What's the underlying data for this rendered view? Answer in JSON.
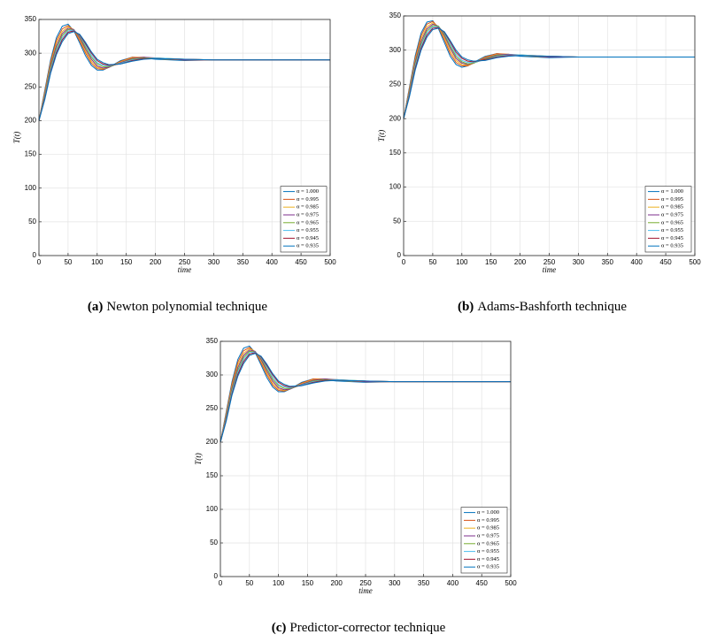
{
  "chart_data": [
    {
      "type": "line",
      "xlabel": "time",
      "ylabel": "T(t)",
      "caption_label": "(a)",
      "caption": "Newton polynomial technique",
      "x": [
        0,
        10,
        20,
        30,
        40,
        50,
        60,
        70,
        80,
        90,
        100,
        110,
        120,
        140,
        160,
        180,
        200,
        250,
        300,
        400,
        500
      ],
      "xlim": [
        0,
        500
      ],
      "ylim": [
        0,
        350
      ],
      "xticks": [
        0,
        50,
        100,
        150,
        200,
        250,
        300,
        350,
        400,
        450,
        500
      ],
      "yticks": [
        0,
        50,
        100,
        150,
        200,
        250,
        300,
        350
      ],
      "grid": true,
      "legend": "lower right",
      "series": [
        {
          "name": "α = 1.000",
          "color": "#0072bd",
          "values": [
            200,
            245,
            290,
            323,
            340,
            343,
            333,
            315,
            296,
            282,
            275,
            275,
            279,
            289,
            294,
            293,
            291,
            289,
            290,
            290,
            290
          ]
        },
        {
          "name": "α = 0.995",
          "color": "#d95319",
          "values": [
            200,
            243,
            287,
            319,
            336,
            341,
            334,
            318,
            300,
            285,
            277,
            276,
            279,
            288,
            294,
            294,
            292,
            290,
            290,
            290,
            290
          ]
        },
        {
          "name": "α = 0.985",
          "color": "#edb120",
          "values": [
            200,
            241,
            284,
            315,
            332,
            339,
            335,
            321,
            303,
            288,
            279,
            277,
            279,
            287,
            293,
            294,
            292,
            290,
            290,
            290,
            290
          ]
        },
        {
          "name": "α = 0.975",
          "color": "#7e2f8e",
          "values": [
            200,
            239,
            281,
            311,
            329,
            337,
            335,
            323,
            306,
            291,
            281,
            278,
            279,
            286,
            292,
            294,
            293,
            290,
            290,
            290,
            290
          ]
        },
        {
          "name": "α = 0.965",
          "color": "#77ac30",
          "values": [
            200,
            237,
            278,
            307,
            326,
            335,
            334,
            325,
            309,
            294,
            284,
            280,
            280,
            285,
            291,
            293,
            293,
            291,
            290,
            290,
            290
          ]
        },
        {
          "name": "α = 0.955",
          "color": "#4dbeee",
          "values": [
            200,
            235,
            275,
            304,
            323,
            333,
            334,
            326,
            312,
            297,
            286,
            282,
            281,
            285,
            290,
            292,
            293,
            291,
            290,
            290,
            290
          ]
        },
        {
          "name": "α = 0.945",
          "color": "#a2142f",
          "values": [
            200,
            233,
            272,
            301,
            320,
            331,
            333,
            327,
            314,
            300,
            289,
            284,
            282,
            284,
            289,
            292,
            292,
            291,
            290,
            290,
            290
          ]
        },
        {
          "name": "α = 0.935",
          "color": "#0072bd",
          "values": [
            200,
            231,
            270,
            298,
            317,
            329,
            332,
            328,
            316,
            302,
            291,
            286,
            283,
            284,
            288,
            291,
            292,
            291,
            290,
            290,
            290
          ]
        }
      ]
    },
    {
      "type": "line",
      "xlabel": "time",
      "ylabel": "T(t)",
      "caption_label": "(b)",
      "caption": "Adams-Bashforth technique",
      "x": [
        0,
        10,
        20,
        30,
        40,
        50,
        60,
        70,
        80,
        90,
        100,
        110,
        120,
        140,
        160,
        180,
        200,
        250,
        300,
        400,
        500
      ],
      "xlim": [
        0,
        500
      ],
      "ylim": [
        0,
        350
      ],
      "xticks": [
        0,
        50,
        100,
        150,
        200,
        250,
        300,
        350,
        400,
        450,
        500
      ],
      "yticks": [
        0,
        50,
        100,
        150,
        200,
        250,
        300,
        350
      ],
      "grid": true,
      "legend": "lower right",
      "series": [
        {
          "name": "α = 1.000",
          "color": "#0072bd",
          "values": [
            200,
            246,
            292,
            325,
            341,
            343,
            331,
            311,
            291,
            279,
            275,
            277,
            282,
            291,
            295,
            293,
            291,
            289,
            290,
            290,
            290
          ]
        },
        {
          "name": "α = 0.995",
          "color": "#d95319",
          "values": [
            200,
            244,
            289,
            321,
            338,
            342,
            333,
            315,
            295,
            282,
            277,
            277,
            281,
            290,
            295,
            294,
            292,
            290,
            290,
            290,
            290
          ]
        },
        {
          "name": "α = 0.985",
          "color": "#edb120",
          "values": [
            200,
            242,
            286,
            317,
            334,
            340,
            334,
            318,
            299,
            285,
            279,
            278,
            281,
            289,
            294,
            294,
            292,
            290,
            290,
            290,
            290
          ]
        },
        {
          "name": "α = 0.975",
          "color": "#7e2f8e",
          "values": [
            200,
            240,
            283,
            313,
            331,
            338,
            335,
            321,
            303,
            288,
            281,
            279,
            281,
            288,
            293,
            294,
            293,
            290,
            290,
            290,
            290
          ]
        },
        {
          "name": "α = 0.965",
          "color": "#77ac30",
          "values": [
            200,
            238,
            280,
            309,
            328,
            336,
            335,
            323,
            306,
            291,
            283,
            280,
            281,
            287,
            292,
            293,
            293,
            291,
            290,
            290,
            290
          ]
        },
        {
          "name": "α = 0.955",
          "color": "#4dbeee",
          "values": [
            200,
            236,
            277,
            306,
            325,
            334,
            334,
            325,
            309,
            294,
            285,
            282,
            282,
            286,
            291,
            293,
            293,
            291,
            290,
            290,
            290
          ]
        },
        {
          "name": "α = 0.945",
          "color": "#a2142f",
          "values": [
            200,
            234,
            274,
            303,
            322,
            332,
            333,
            326,
            312,
            297,
            288,
            284,
            283,
            286,
            290,
            292,
            292,
            291,
            290,
            290,
            290
          ]
        },
        {
          "name": "α = 0.935",
          "color": "#0072bd",
          "values": [
            200,
            232,
            271,
            300,
            319,
            330,
            332,
            327,
            314,
            300,
            290,
            286,
            284,
            285,
            289,
            291,
            292,
            291,
            290,
            290,
            290
          ]
        }
      ]
    },
    {
      "type": "line",
      "xlabel": "time",
      "ylabel": "T(t)",
      "caption_label": "(c)",
      "caption": "Predictor-corrector technique",
      "x": [
        0,
        10,
        20,
        30,
        40,
        50,
        60,
        70,
        80,
        90,
        100,
        110,
        120,
        140,
        160,
        180,
        200,
        250,
        300,
        400,
        500
      ],
      "xlim": [
        0,
        500
      ],
      "ylim": [
        0,
        350
      ],
      "xticks": [
        0,
        50,
        100,
        150,
        200,
        250,
        300,
        350,
        400,
        450,
        500
      ],
      "yticks": [
        0,
        50,
        100,
        150,
        200,
        250,
        300,
        350
      ],
      "grid": true,
      "legend": "lower right",
      "series": [
        {
          "name": "α = 1.000",
          "color": "#0072bd",
          "values": [
            200,
            245,
            290,
            323,
            340,
            343,
            333,
            315,
            296,
            282,
            275,
            275,
            279,
            289,
            294,
            293,
            291,
            289,
            290,
            290,
            290
          ]
        },
        {
          "name": "α = 0.995",
          "color": "#d95319",
          "values": [
            200,
            243,
            287,
            319,
            336,
            341,
            334,
            318,
            300,
            285,
            277,
            276,
            279,
            288,
            294,
            294,
            292,
            290,
            290,
            290,
            290
          ]
        },
        {
          "name": "α = 0.985",
          "color": "#edb120",
          "values": [
            200,
            241,
            284,
            315,
            332,
            339,
            335,
            321,
            303,
            288,
            279,
            277,
            279,
            287,
            293,
            294,
            292,
            290,
            290,
            290,
            290
          ]
        },
        {
          "name": "α = 0.975",
          "color": "#7e2f8e",
          "values": [
            200,
            239,
            281,
            311,
            329,
            337,
            335,
            323,
            306,
            291,
            281,
            278,
            279,
            286,
            292,
            294,
            293,
            290,
            290,
            290,
            290
          ]
        },
        {
          "name": "α = 0.965",
          "color": "#77ac30",
          "values": [
            200,
            237,
            278,
            307,
            326,
            335,
            334,
            325,
            309,
            294,
            284,
            280,
            280,
            285,
            291,
            293,
            293,
            291,
            290,
            290,
            290
          ]
        },
        {
          "name": "α = 0.955",
          "color": "#4dbeee",
          "values": [
            200,
            235,
            275,
            304,
            323,
            333,
            334,
            326,
            312,
            297,
            286,
            282,
            281,
            285,
            290,
            292,
            293,
            291,
            290,
            290,
            290
          ]
        },
        {
          "name": "α = 0.945",
          "color": "#a2142f",
          "values": [
            200,
            233,
            272,
            301,
            320,
            331,
            333,
            327,
            314,
            300,
            289,
            284,
            282,
            284,
            289,
            292,
            292,
            291,
            290,
            290,
            290
          ]
        },
        {
          "name": "α = 0.935",
          "color": "#0072bd",
          "values": [
            200,
            231,
            270,
            298,
            317,
            329,
            332,
            328,
            316,
            302,
            291,
            286,
            283,
            284,
            288,
            291,
            292,
            291,
            290,
            290,
            290
          ]
        }
      ]
    }
  ]
}
